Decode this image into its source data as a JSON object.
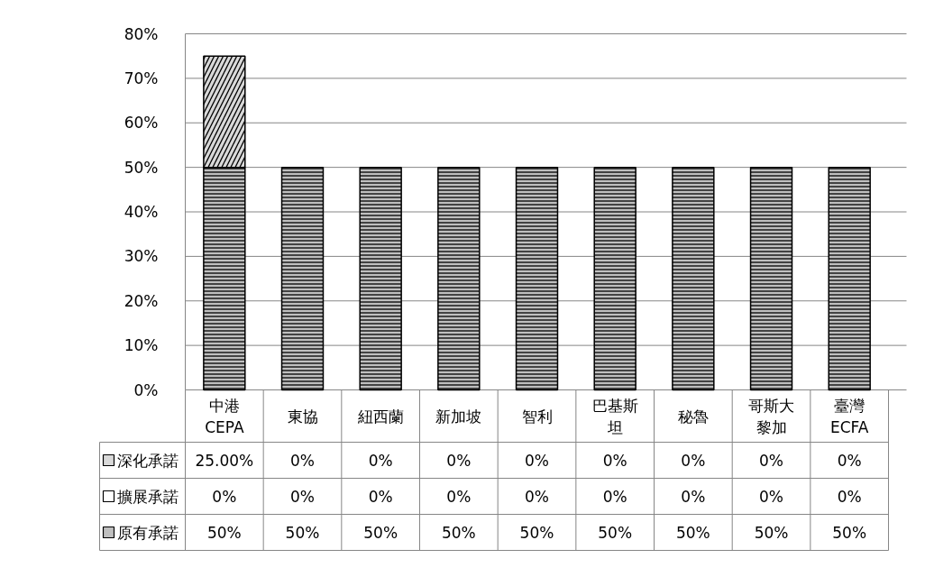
{
  "chart_data": {
    "type": "bar",
    "stacked": true,
    "categories": [
      "中港CEPA",
      "東協",
      "紐西蘭",
      "新加坡",
      "智利",
      "巴基斯坦",
      "秘魯",
      "哥斯大黎加",
      "臺灣ECFA"
    ],
    "series": [
      {
        "name": "原有承諾",
        "color": "#bfbfbf",
        "values": [
          50,
          50,
          50,
          50,
          50,
          50,
          50,
          50,
          50
        ],
        "value_labels": [
          "50%",
          "50%",
          "50%",
          "50%",
          "50%",
          "50%",
          "50%",
          "50%",
          "50%"
        ]
      },
      {
        "name": "擴展承諾",
        "color": "#ffffff",
        "values": [
          0,
          0,
          0,
          0,
          0,
          0,
          0,
          0,
          0
        ],
        "value_labels": [
          "0%",
          "0%",
          "0%",
          "0%",
          "0%",
          "0%",
          "0%",
          "0%",
          "0%"
        ]
      },
      {
        "name": "深化承諾",
        "color": "#d9d9d9",
        "values": [
          25,
          0,
          0,
          0,
          0,
          0,
          0,
          0,
          0
        ],
        "value_labels": [
          "25.00%",
          "0%",
          "0%",
          "0%",
          "0%",
          "0%",
          "0%",
          "0%",
          "0%"
        ]
      }
    ],
    "ylim": [
      0,
      80
    ],
    "yticks": [
      {
        "value": 0,
        "label": "0%"
      },
      {
        "value": 10,
        "label": "10%"
      },
      {
        "value": 20,
        "label": "20%"
      },
      {
        "value": 30,
        "label": "30%"
      },
      {
        "value": 40,
        "label": "40%"
      },
      {
        "value": 50,
        "label": "50%"
      },
      {
        "value": 60,
        "label": "60%"
      },
      {
        "value": 70,
        "label": "70%"
      },
      {
        "value": 80,
        "label": "80%"
      }
    ],
    "grid": "y",
    "legend": "bottom"
  }
}
